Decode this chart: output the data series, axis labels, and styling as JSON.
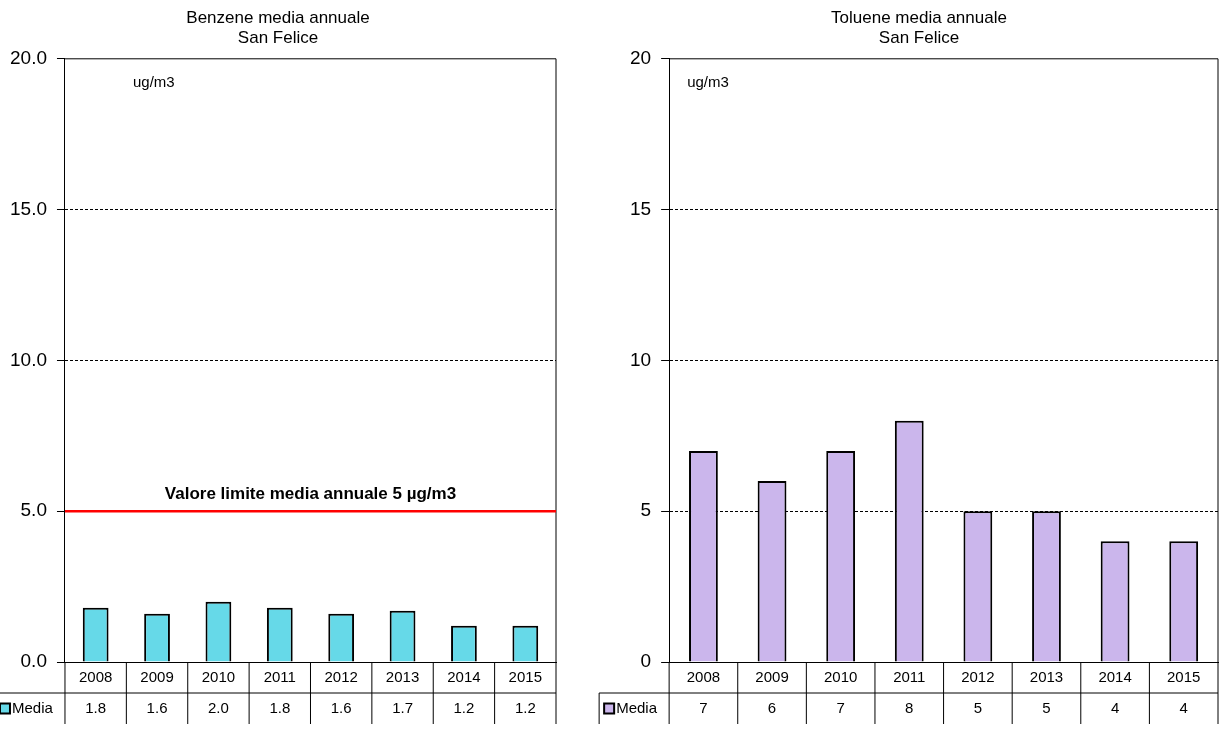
{
  "chart_data": [
    {
      "type": "bar",
      "title": "Benzene media annuale\nSan Felice",
      "categories": [
        "2008",
        "2009",
        "2010",
        "2011",
        "2012",
        "2013",
        "2014",
        "2015"
      ],
      "series": [
        {
          "name": "Media",
          "color": "#66d9e8",
          "values": [
            1.8,
            1.6,
            2.0,
            1.8,
            1.6,
            1.7,
            1.2,
            1.2
          ],
          "value_labels": [
            "1.8",
            "1.6",
            "2.0",
            "1.8",
            "1.6",
            "1.7",
            "1.2",
            "1.2"
          ]
        }
      ],
      "ylim": [
        0,
        20
      ],
      "yticks": [
        {
          "value": 0,
          "label": "0.0"
        },
        {
          "value": 5,
          "label": "5.0"
        },
        {
          "value": 10,
          "label": "10.0"
        },
        {
          "value": 15,
          "label": "15.0"
        },
        {
          "value": 20,
          "label": "20.0"
        }
      ],
      "grid": "y",
      "legend": "bottom",
      "annotations": [
        "ug/m3"
      ],
      "ref_lines": [
        {
          "axis": "y",
          "value": 5,
          "label": "Valore limite media annuale 5 µg/m3",
          "color": "#ff0000"
        }
      ]
    },
    {
      "type": "bar",
      "title": "Toluene media annuale\nSan Felice",
      "categories": [
        "2008",
        "2009",
        "2010",
        "2011",
        "2012",
        "2013",
        "2014",
        "2015"
      ],
      "series": [
        {
          "name": "Media",
          "color": "#cbb6ec",
          "values": [
            7,
            6,
            7,
            8,
            5,
            5,
            4,
            4
          ]
        }
      ],
      "ylim": [
        0,
        20
      ],
      "yticks": [
        0,
        5,
        10,
        15,
        20
      ],
      "grid": "y",
      "legend": "bottom",
      "data_labels": true,
      "annotations": [
        "ug/m3"
      ]
    }
  ]
}
